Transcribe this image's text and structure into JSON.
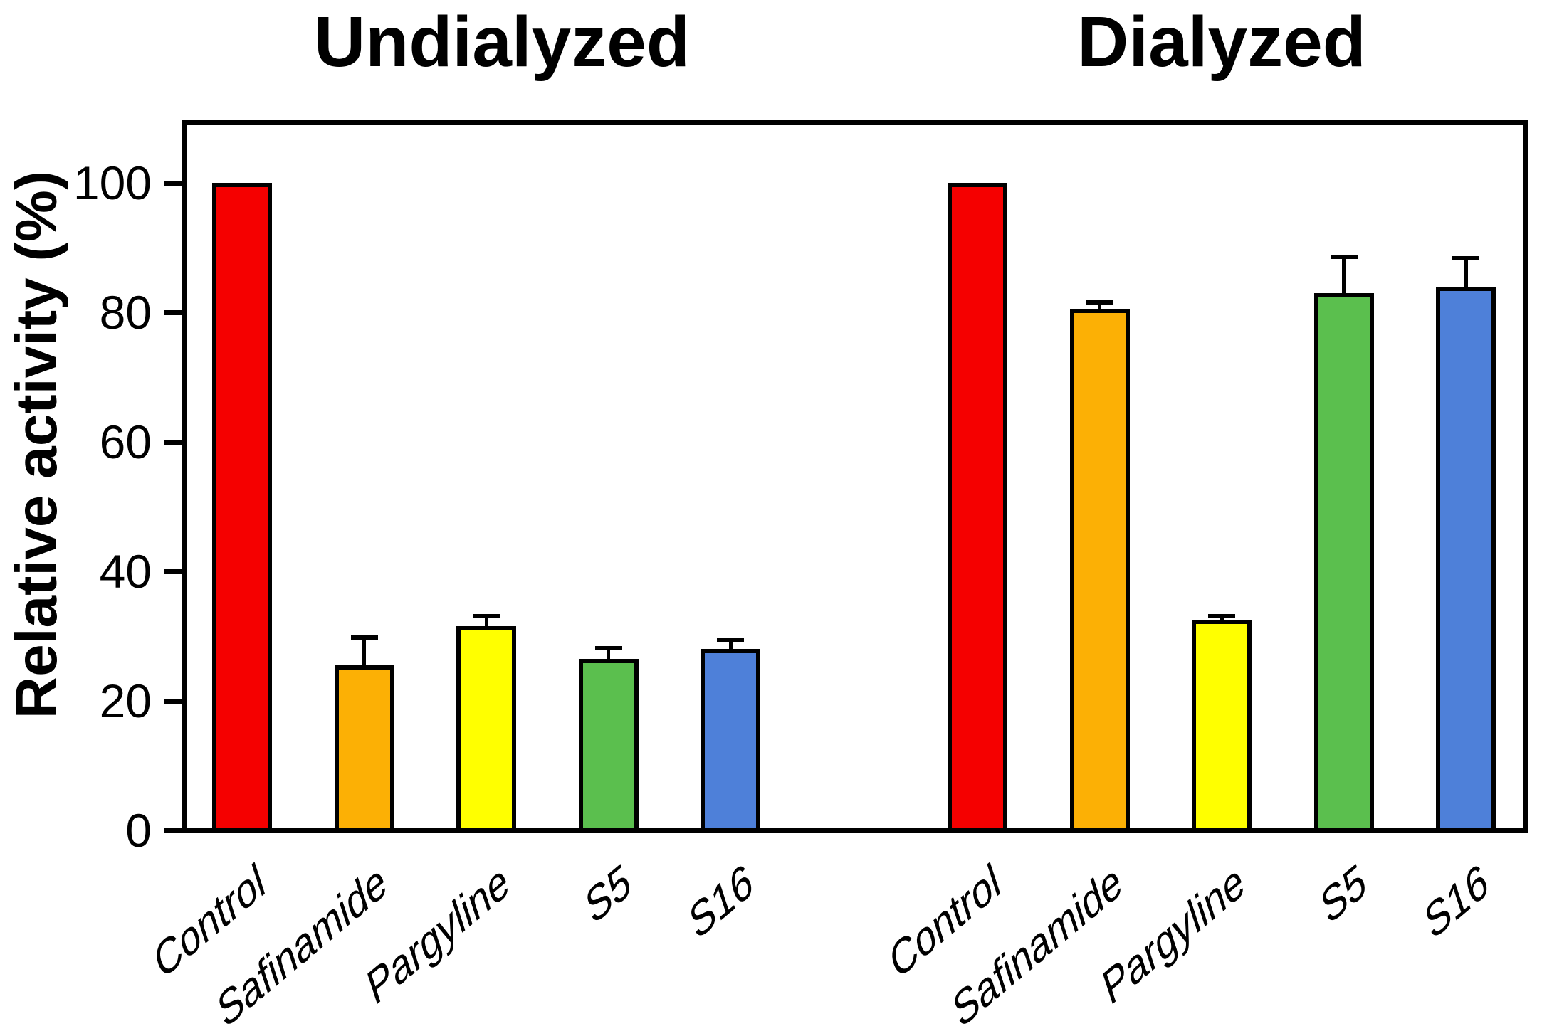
{
  "chart_data": {
    "type": "bar",
    "ylabel": "Relative activity (%)",
    "ylim": [
      0,
      110
    ],
    "yticks": [
      0,
      20,
      40,
      60,
      80,
      100
    ],
    "ytick_labels": [
      "0",
      "20",
      "40",
      "60",
      "80",
      "100"
    ],
    "grid": false,
    "legend": "none",
    "categories": [
      "Control",
      "Safinamide",
      "Pargyline",
      "S5",
      "S16"
    ],
    "bar_colors": [
      "#F50000",
      "#FCB005",
      "#FFFF00",
      "#5BBF4E",
      "#4E80D9"
    ],
    "bar_outline_color": "#000000",
    "error_bar_color": "#000000",
    "groups": [
      {
        "title": "Undialyzed",
        "series": [
          {
            "category": "Control",
            "value": 100,
            "error_up": 0
          },
          {
            "category": "Safinamide",
            "value": 25.5,
            "error_up": 4.3
          },
          {
            "category": "Pargyline",
            "value": 31.5,
            "error_up": 1.6
          },
          {
            "category": "S5",
            "value": 26.5,
            "error_up": 1.6
          },
          {
            "category": "S16",
            "value": 28,
            "error_up": 1.4
          }
        ]
      },
      {
        "title": "Dialyzed",
        "series": [
          {
            "category": "Control",
            "value": 100,
            "error_up": 0
          },
          {
            "category": "Safinamide",
            "value": 80.5,
            "error_up": 1.0
          },
          {
            "category": "Pargyline",
            "value": 32.5,
            "error_up": 0.6
          },
          {
            "category": "S5",
            "value": 83,
            "error_up": 5.6
          },
          {
            "category": "S16",
            "value": 84,
            "error_up": 4.4
          }
        ]
      }
    ]
  }
}
